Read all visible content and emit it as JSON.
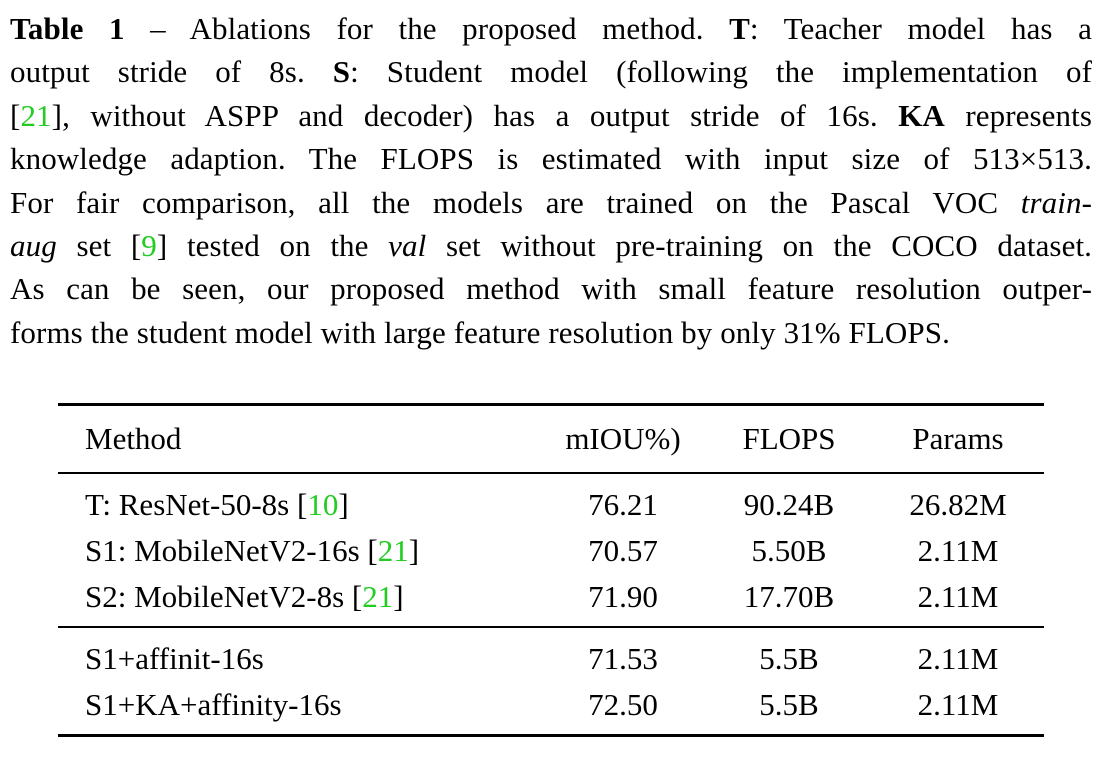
{
  "caption": {
    "label": "Table 1",
    "dash": " – Ablations for the proposed method. ",
    "t_key": "T",
    "t_desc": ": Teacher model has a",
    "line2_a": "output stride of 8s. ",
    "s_key": "S",
    "s_desc": ": Student model (following the implementation of",
    "line3_open": "[",
    "cite21": "21",
    "line3_rest": "], without ASPP and decoder) has a output stride of 16s. ",
    "ka_key": "KA",
    "ka_desc": " represents",
    "line4": "knowledge adaption. The FLOPS is estimated with input size of 513×513.",
    "line5_a": "For fair comparison, all the models are trained on the Pascal VOC ",
    "line5_train": "train-",
    "line6_aug": "aug",
    "line6_b": " set [",
    "cite9": "9",
    "line6_c": "] tested on the ",
    "line6_val": "val",
    "line6_d": " set without pre-training on the COCO dataset.",
    "line7": "As can be seen, our proposed method with small feature resolution outper-",
    "line8": "forms the student model with large feature resolution by only 31% FLOPS."
  },
  "table": {
    "headers": [
      "Method",
      "mIOU%)",
      "FLOPS",
      "Params"
    ],
    "rows": [
      {
        "method": "T: ResNet-50-8s [",
        "cite": "10",
        "close": "]",
        "miou": "76.21",
        "flops": "90.24B",
        "params": "26.82M"
      },
      {
        "method": "S1: MobileNetV2-16s [",
        "cite": "21",
        "close": "]",
        "miou": "70.57",
        "flops": "5.50B",
        "params": "2.11M"
      },
      {
        "method": "S2: MobileNetV2-8s [",
        "cite": "21",
        "close": "]",
        "miou": "71.90",
        "flops": "17.70B",
        "params": "2.11M"
      },
      {
        "method": "S1+affinit-16s",
        "cite": "",
        "close": "",
        "miou": "71.53",
        "flops": "5.5B",
        "params": "2.11M"
      },
      {
        "method": "S1+KA+affinity-16s",
        "cite": "",
        "close": "",
        "miou": "72.50",
        "flops": "5.5B",
        "params": "2.11M"
      }
    ]
  },
  "colors": {
    "citation": "#22cc22",
    "text": "#000000",
    "background": "#ffffff"
  }
}
